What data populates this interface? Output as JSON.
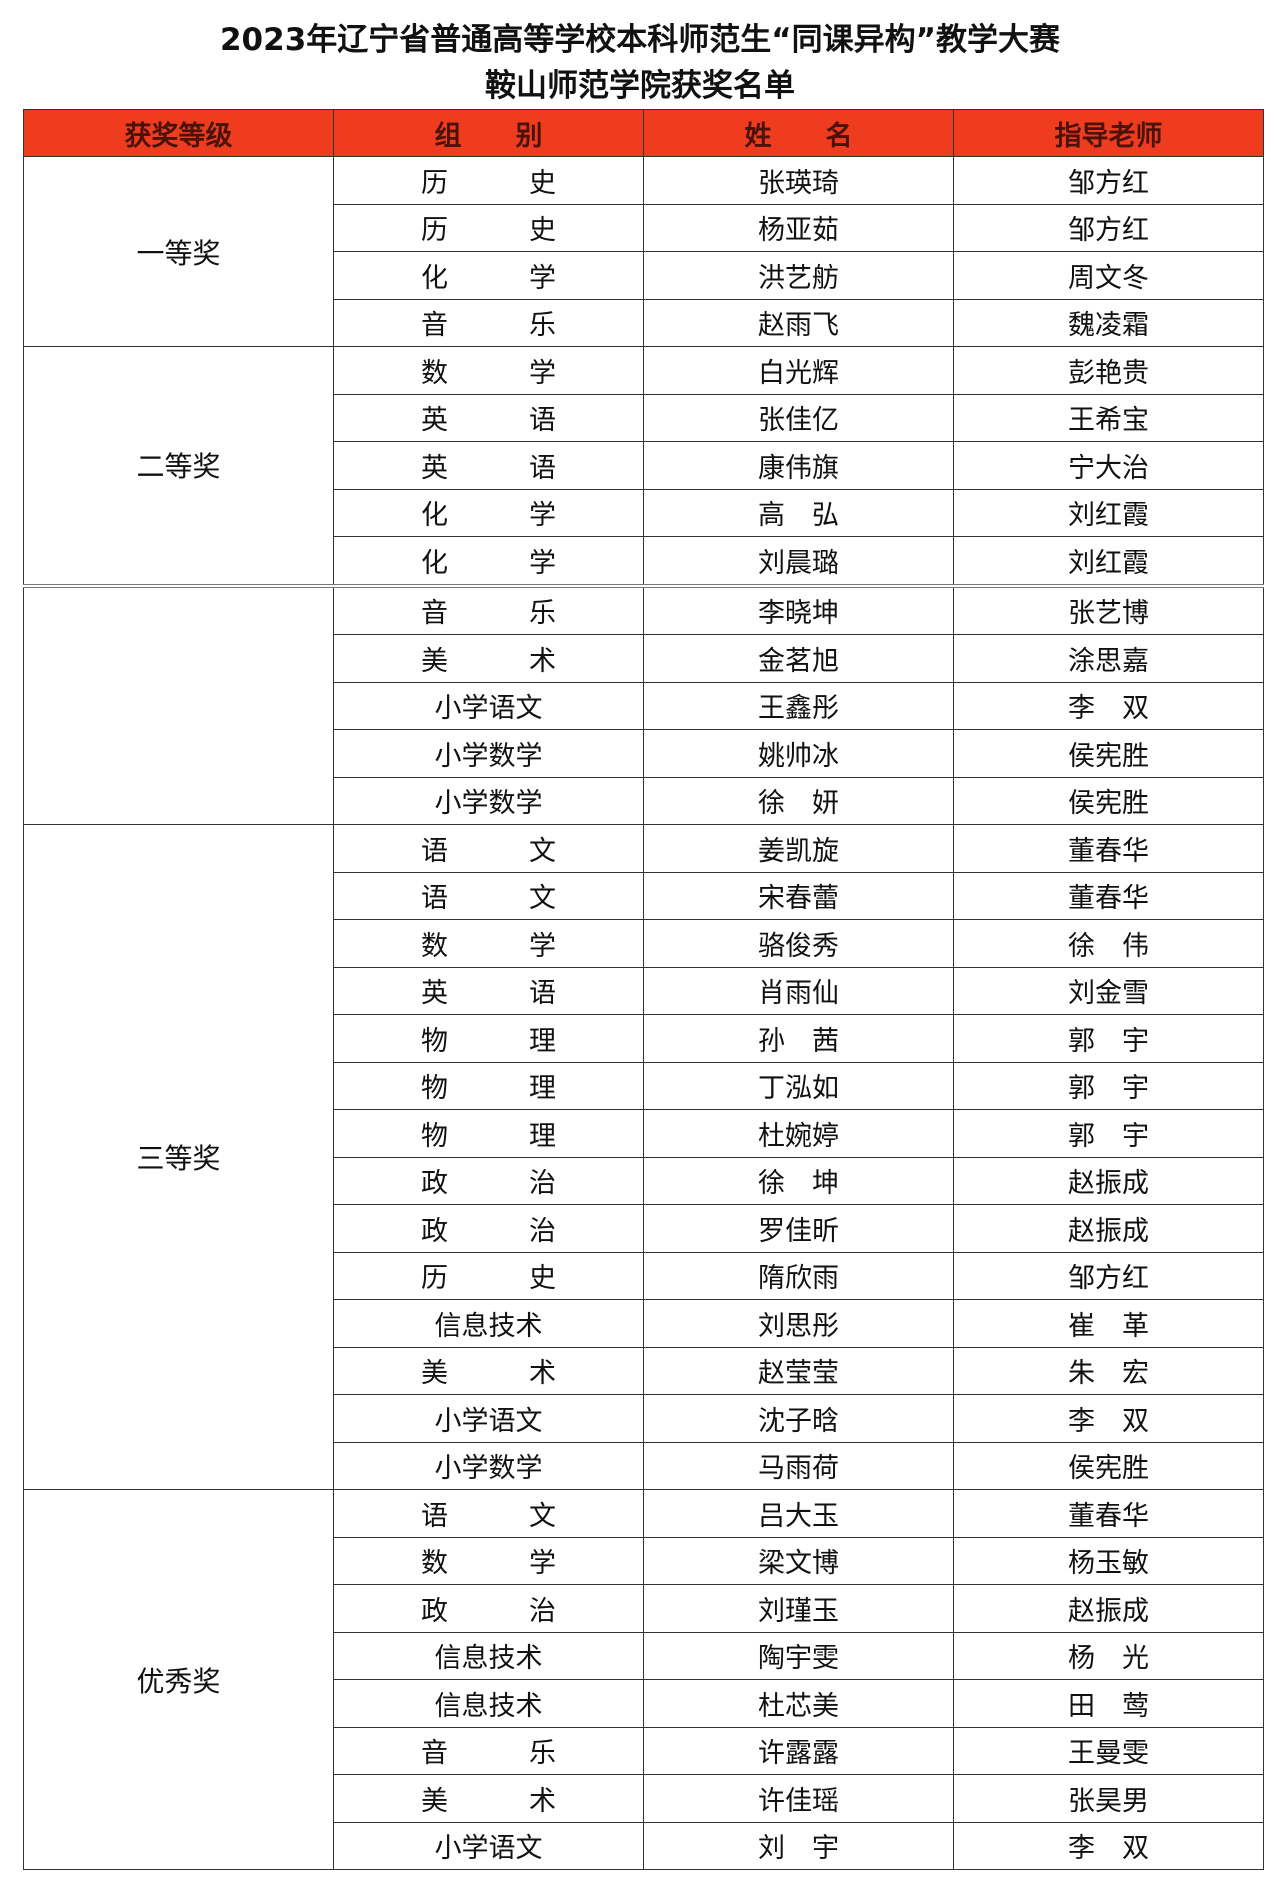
{
  "title": "2023年辽宁省普通高等学校本科师范生“同课异构”教学大赛",
  "subtitle": "鞍山师范学院获奖名单",
  "header_color": "#f03c1e",
  "columns": [
    "获奖等级",
    "组　　别",
    "姓　　名",
    "指导老师"
  ],
  "groups": [
    {
      "grade": "一等奖",
      "rows": [
        [
          "历　　　史",
          "张瑛琦",
          "邹方红"
        ],
        [
          "历　　　史",
          "杨亚茹",
          "邹方红"
        ],
        [
          "化　　　学",
          "洪艺舫",
          "周文冬"
        ],
        [
          "音　　　乐",
          "赵雨飞",
          "魏凌霜"
        ]
      ]
    },
    {
      "grade": "二等奖",
      "rows": [
        [
          "数　　　学",
          "白光辉",
          "彭艳贵"
        ],
        [
          "英　　　语",
          "张佳亿",
          "王希宝"
        ],
        [
          "英　　　语",
          "康伟旗",
          "宁大治"
        ],
        [
          "化　　　学",
          "高　弘",
          "刘红霞"
        ],
        [
          "化　　　学",
          "刘晨璐",
          "刘红霞"
        ]
      ]
    },
    {
      "grade": "",
      "rows": [
        [
          "音　　　乐",
          "李晓坤",
          "张艺博"
        ],
        [
          "美　　　术",
          "金茗旭",
          "涂思嘉"
        ],
        [
          "小学语文",
          "王鑫彤",
          "李　双"
        ],
        [
          "小学数学",
          "姚帅冰",
          "侯宪胜"
        ],
        [
          "小学数学",
          "徐　妍",
          "侯宪胜"
        ]
      ]
    },
    {
      "grade": "三等奖",
      "rows": [
        [
          "语　　　文",
          "姜凯旋",
          "董春华"
        ],
        [
          "语　　　文",
          "宋春蕾",
          "董春华"
        ],
        [
          "数　　　学",
          "骆俊秀",
          "徐　伟"
        ],
        [
          "英　　　语",
          "肖雨仙",
          "刘金雪"
        ],
        [
          "物　　　理",
          "孙　茜",
          "郭　宇"
        ],
        [
          "物　　　理",
          "丁泓如",
          "郭　宇"
        ],
        [
          "物　　　理",
          "杜婉婷",
          "郭　宇"
        ],
        [
          "政　　　治",
          "徐　坤",
          "赵振成"
        ],
        [
          "政　　　治",
          "罗佳昕",
          "赵振成"
        ],
        [
          "历　　　史",
          "隋欣雨",
          "邹方红"
        ],
        [
          "信息技术",
          "刘思彤",
          "崔　革"
        ],
        [
          "美　　　术",
          "赵莹莹",
          "朱　宏"
        ],
        [
          "小学语文",
          "沈子晗",
          "李　双"
        ],
        [
          "小学数学",
          "马雨荷",
          "侯宪胜"
        ]
      ]
    },
    {
      "grade": "优秀奖",
      "rows": [
        [
          "语　　　文",
          "吕大玉",
          "董春华"
        ],
        [
          "数　　　学",
          "梁文博",
          "杨玉敏"
        ],
        [
          "政　　　治",
          "刘瑾玉",
          "赵振成"
        ],
        [
          "信息技术",
          "陶宇雯",
          "杨　光"
        ],
        [
          "信息技术",
          "杜芯美",
          "田　莺"
        ],
        [
          "音　　　乐",
          "许露露",
          "王曼雯"
        ],
        [
          "美　　　术",
          "许佳瑶",
          "张昊男"
        ],
        [
          "小学语文",
          "刘　宇",
          "李　双"
        ]
      ]
    }
  ]
}
